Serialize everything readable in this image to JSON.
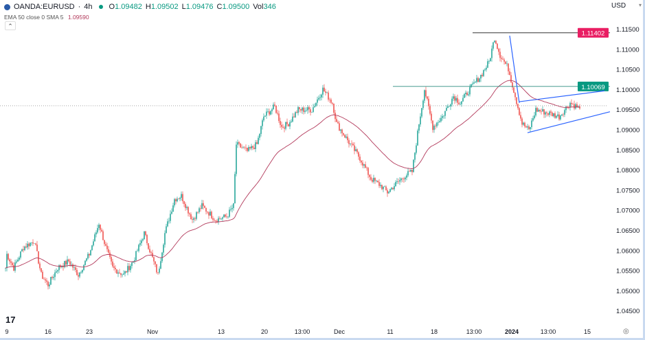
{
  "header": {
    "symbol": "OANDA:EURUSD",
    "interval": "4h",
    "open_label": "O",
    "open": "1.09482",
    "high_label": "H",
    "high": "1.09502",
    "low_label": "L",
    "low": "1.09476",
    "close_label": "C",
    "close": "1.09500",
    "vol_label": "Vol",
    "volume": "346"
  },
  "indicator": {
    "name": "EMA",
    "params": "50 close 0 SMA 5",
    "value": "1.09590"
  },
  "currency": "USD",
  "colors": {
    "up": "#26a69a",
    "down": "#ef5350",
    "ema": "#b2385a",
    "trend": "#2962ff",
    "resistance_label": "#e91e63",
    "support_label": "#089981"
  },
  "chart_data": {
    "type": "candlestick",
    "timeframe": "4h",
    "ylim": [
      1.0425,
      1.1172
    ],
    "y_ticks": [
      "1.11500",
      "1.11000",
      "1.10500",
      "1.10000",
      "1.09500",
      "1.09000",
      "1.08500",
      "1.08000",
      "1.07500",
      "1.07000",
      "1.06500",
      "1.06000",
      "1.05500",
      "1.05000",
      "1.04500"
    ],
    "x_ticks": [
      "9",
      "16",
      "23",
      "Nov",
      "13",
      "20",
      "13:00",
      "Dec",
      "11",
      "18",
      "13:00",
      "2024",
      "13:00",
      "15"
    ],
    "price_path": [
      [
        "2023-10-06 16:00",
        1.0522
      ],
      [
        "2023-10-09 00:00",
        1.059
      ],
      [
        "2023-10-09 20:00",
        1.0556
      ],
      [
        "2023-10-11 00:00",
        1.0607
      ],
      [
        "2023-10-12 08:00",
        1.0624
      ],
      [
        "2023-10-13 04:00",
        1.0539
      ],
      [
        "2023-10-16 00:00",
        1.0514
      ],
      [
        "2023-10-17 04:00",
        1.0556
      ],
      [
        "2023-10-18 12:00",
        1.0573
      ],
      [
        "2023-10-19 16:00",
        1.0539
      ],
      [
        "2023-10-23 00:00",
        1.059
      ],
      [
        "2023-10-24 04:00",
        1.0667
      ],
      [
        "2023-10-25 00:00",
        1.0607
      ],
      [
        "2023-10-25 20:00",
        1.0556
      ],
      [
        "2023-10-27 04:00",
        1.0539
      ],
      [
        "2023-10-30 08:00",
        1.0573
      ],
      [
        "2023-10-31 16:00",
        1.0642
      ],
      [
        "2023-11-01 12:00",
        1.059
      ],
      [
        "2023-11-02 08:00",
        1.0539
      ],
      [
        "2023-11-03 04:00",
        1.0642
      ],
      [
        "2023-11-06 08:00",
        1.0727
      ],
      [
        "2023-11-07 04:00",
        1.0735
      ],
      [
        "2023-11-08 12:00",
        1.0676
      ],
      [
        "2023-11-09 16:00",
        1.071
      ],
      [
        "2023-11-13 08:00",
        1.0676
      ],
      [
        "2023-11-14 16:00",
        1.0684
      ],
      [
        "2023-11-15 12:00",
        1.071
      ],
      [
        "2023-11-15 20:00",
        1.0863
      ],
      [
        "2023-11-17 04:00",
        1.0846
      ],
      [
        "2023-11-20 08:00",
        1.0863
      ],
      [
        "2023-11-21 04:00",
        1.0932
      ],
      [
        "2023-11-22 12:00",
        1.0957
      ],
      [
        "2023-11-23 08:00",
        1.0906
      ],
      [
        "2023-11-24 04:00",
        1.0915
      ],
      [
        "2023-11-27 08:00",
        1.0949
      ],
      [
        "2023-11-29 00:00",
        1.0949
      ],
      [
        "2023-11-30 08:00",
        1.1
      ],
      [
        "2023-12-01 12:00",
        1.0966
      ],
      [
        "2023-12-04 00:00",
        1.0915
      ],
      [
        "2023-12-05 16:00",
        1.0863
      ],
      [
        "2023-12-06 20:00",
        1.0829
      ],
      [
        "2023-12-08 04:00",
        1.0778
      ],
      [
        "2023-12-11 08:00",
        1.0761
      ],
      [
        "2023-12-12 04:00",
        1.0744
      ],
      [
        "2023-12-13 00:00",
        1.0761
      ],
      [
        "2023-12-14 08:00",
        1.0786
      ],
      [
        "2023-12-15 04:00",
        1.0795
      ],
      [
        "2023-12-18 00:00",
        1.0915
      ],
      [
        "2023-12-18 16:00",
        1.1
      ],
      [
        "2023-12-19 16:00",
        1.0906
      ],
      [
        "2023-12-20 20:00",
        1.0932
      ],
      [
        "2023-12-22 04:00",
        1.0983
      ],
      [
        "2023-12-25 00:00",
        1.0966
      ],
      [
        "2023-12-26 04:00",
        1.1
      ],
      [
        "2023-12-27 12:00",
        1.1034
      ],
      [
        "2023-12-28 12:00",
        1.1068
      ],
      [
        "2023-12-29 04:00",
        1.1128
      ],
      [
        "2023-12-29 20:00",
        1.1085
      ],
      [
        "2024-01-01 20:00",
        1.1051
      ],
      [
        "2024-01-02 16:00",
        1.0983
      ],
      [
        "2024-01-03 12:00",
        1.0915
      ],
      [
        "2024-01-04 08:00",
        1.0898
      ],
      [
        "2024-01-05 04:00",
        1.0949
      ],
      [
        "2024-01-08 20:00",
        1.094
      ],
      [
        "2024-01-10 00:00",
        1.0932
      ],
      [
        "2024-01-11 08:00",
        1.0966
      ],
      [
        "2024-01-12 12:00",
        1.0952
      ]
    ],
    "ema_period": 50,
    "current_price": 1.0959,
    "levels": [
      {
        "price": 1.11402,
        "label": "1.11402",
        "from": "2023-12-26 12:00",
        "color": "#e91e63"
      },
      {
        "price": 1.10069,
        "label": "1.10069",
        "from": "2023-12-12 20:00",
        "color": "#089981"
      }
    ],
    "trendlines": [
      [
        [
          "2024-01-02 00:00",
          1.1133
        ],
        [
          "2024-01-03 04:00",
          1.0966
        ]
      ],
      [
        [
          "2024-01-03 04:00",
          1.0969
        ],
        [
          "2024-01-17 12:00",
          1.0996
        ]
      ],
      [
        [
          "2024-01-04 04:00",
          1.0892
        ],
        [
          "2024-01-18 04:00",
          1.0944
        ]
      ]
    ]
  }
}
